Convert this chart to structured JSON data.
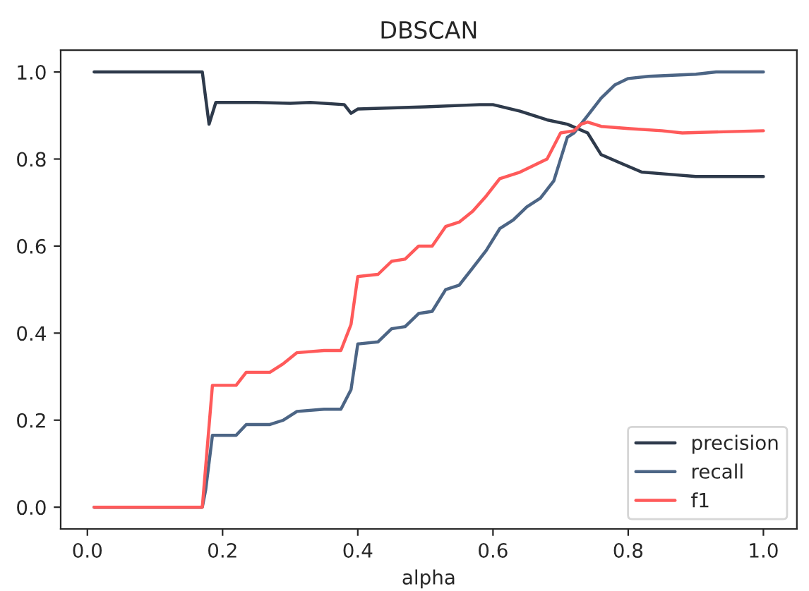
{
  "chart_data": {
    "type": "line",
    "title": "DBSCAN",
    "xlabel": "alpha",
    "xlim": [
      -0.0395,
      1.0495
    ],
    "ylim": [
      -0.05,
      1.05
    ],
    "xticks": [
      {
        "value": 0.0,
        "label": "0.0"
      },
      0.2,
      0.4,
      0.6,
      0.8,
      {
        "value": 1.0,
        "label": "1.0"
      }
    ],
    "yticks": [
      {
        "value": 0.0,
        "label": "0.0"
      },
      0.2,
      0.4,
      0.6,
      0.8,
      {
        "value": 1.0,
        "label": "1.0"
      }
    ],
    "grid": false,
    "legend": "bottom right",
    "marker": "none",
    "line_style": "solid",
    "series": [
      {
        "name": "precision",
        "color": "#2e3a4b",
        "x": [
          0.01,
          0.17,
          0.18,
          0.19,
          0.25,
          0.3,
          0.33,
          0.38,
          0.39,
          0.4,
          0.5,
          0.58,
          0.6,
          0.64,
          0.68,
          0.71,
          0.74,
          0.76,
          0.79,
          0.82,
          0.86,
          0.9,
          1.0
        ],
        "values": [
          1.0,
          1.0,
          0.88,
          0.93,
          0.93,
          0.928,
          0.93,
          0.925,
          0.905,
          0.915,
          0.92,
          0.925,
          0.925,
          0.91,
          0.89,
          0.88,
          0.86,
          0.81,
          0.79,
          0.77,
          0.765,
          0.76,
          0.76
        ]
      },
      {
        "name": "recall",
        "color": "#4c6585",
        "x": [
          0.01,
          0.17,
          0.175,
          0.185,
          0.22,
          0.235,
          0.27,
          0.29,
          0.31,
          0.35,
          0.375,
          0.39,
          0.4,
          0.43,
          0.45,
          0.47,
          0.49,
          0.51,
          0.53,
          0.55,
          0.57,
          0.59,
          0.61,
          0.63,
          0.65,
          0.67,
          0.69,
          0.71,
          0.72,
          0.74,
          0.76,
          0.78,
          0.8,
          0.83,
          0.9,
          0.93,
          1.0
        ],
        "values": [
          0.0,
          0.0,
          0.04,
          0.165,
          0.165,
          0.19,
          0.19,
          0.2,
          0.22,
          0.225,
          0.225,
          0.27,
          0.375,
          0.38,
          0.41,
          0.415,
          0.445,
          0.45,
          0.5,
          0.51,
          0.55,
          0.59,
          0.64,
          0.66,
          0.69,
          0.71,
          0.75,
          0.85,
          0.86,
          0.9,
          0.94,
          0.97,
          0.985,
          0.99,
          0.995,
          1.0,
          1.0
        ]
      },
      {
        "name": "f1",
        "color": "#ff5a5a",
        "x": [
          0.01,
          0.17,
          0.185,
          0.22,
          0.235,
          0.27,
          0.29,
          0.31,
          0.35,
          0.375,
          0.39,
          0.4,
          0.43,
          0.45,
          0.47,
          0.49,
          0.51,
          0.53,
          0.55,
          0.57,
          0.59,
          0.61,
          0.64,
          0.66,
          0.68,
          0.7,
          0.72,
          0.73,
          0.74,
          0.76,
          0.8,
          0.85,
          0.88,
          1.0
        ],
        "values": [
          0.0,
          0.0,
          0.28,
          0.28,
          0.31,
          0.31,
          0.33,
          0.355,
          0.36,
          0.36,
          0.42,
          0.53,
          0.535,
          0.565,
          0.57,
          0.6,
          0.6,
          0.645,
          0.655,
          0.68,
          0.715,
          0.755,
          0.77,
          0.785,
          0.8,
          0.86,
          0.865,
          0.88,
          0.885,
          0.875,
          0.87,
          0.865,
          0.86,
          0.865
        ]
      }
    ]
  }
}
